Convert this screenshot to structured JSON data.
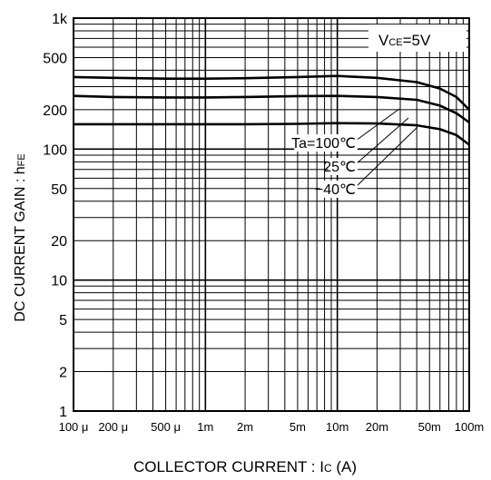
{
  "chart_data": {
    "type": "line",
    "title": "",
    "x_scale": "log",
    "y_scale": "log",
    "xlim": [
      0.0001,
      0.1
    ],
    "ylim": [
      1,
      1000
    ],
    "grid": true,
    "xlabel": {
      "main": "COLLECTOR CURRENT : I",
      "sub": "C",
      "unit": " (A)"
    },
    "ylabel": {
      "main": "DC CURRENT GAIN : h",
      "sub": "FE"
    },
    "x_ticks": [
      {
        "value": 0.0001,
        "label": "100 μ"
      },
      {
        "value": 0.0002,
        "label": "200 μ"
      },
      {
        "value": 0.0005,
        "label": "500 μ"
      },
      {
        "value": 0.001,
        "label": "1m"
      },
      {
        "value": 0.002,
        "label": "2m"
      },
      {
        "value": 0.005,
        "label": "5m"
      },
      {
        "value": 0.01,
        "label": "10m"
      },
      {
        "value": 0.02,
        "label": "20m"
      },
      {
        "value": 0.05,
        "label": "50m"
      },
      {
        "value": 0.1,
        "label": "100m"
      }
    ],
    "y_ticks": [
      {
        "value": 1000,
        "label": "1k"
      },
      {
        "value": 500,
        "label": "500"
      },
      {
        "value": 200,
        "label": "200"
      },
      {
        "value": 100,
        "label": "100"
      },
      {
        "value": 50,
        "label": "50"
      },
      {
        "value": 20,
        "label": "20"
      },
      {
        "value": 10,
        "label": "10"
      },
      {
        "value": 5,
        "label": "5"
      },
      {
        "value": 2,
        "label": "2"
      },
      {
        "value": 1,
        "label": "1"
      }
    ],
    "condition": {
      "prefix": "V",
      "sub": "CE",
      "suffix": "=5V"
    },
    "series": [
      {
        "name": "Ta=100℃",
        "x": [
          0.0001,
          0.0002,
          0.0005,
          0.001,
          0.002,
          0.005,
          0.01,
          0.02,
          0.04,
          0.06,
          0.08,
          0.1
        ],
        "y": [
          355,
          350,
          345,
          345,
          348,
          355,
          362,
          350,
          325,
          290,
          250,
          200
        ]
      },
      {
        "name": "25℃",
        "x": [
          0.0001,
          0.0002,
          0.0005,
          0.001,
          0.002,
          0.005,
          0.01,
          0.02,
          0.04,
          0.06,
          0.08,
          0.1
        ],
        "y": [
          255,
          250,
          248,
          248,
          250,
          254,
          255,
          250,
          238,
          215,
          188,
          160
        ]
      },
      {
        "name": "−40℃",
        "x": [
          0.0001,
          0.0002,
          0.0005,
          0.001,
          0.002,
          0.005,
          0.01,
          0.02,
          0.04,
          0.06,
          0.08,
          0.1
        ],
        "y": [
          155,
          155,
          155,
          155,
          155,
          156,
          158,
          157,
          152,
          142,
          128,
          108
        ]
      }
    ]
  }
}
